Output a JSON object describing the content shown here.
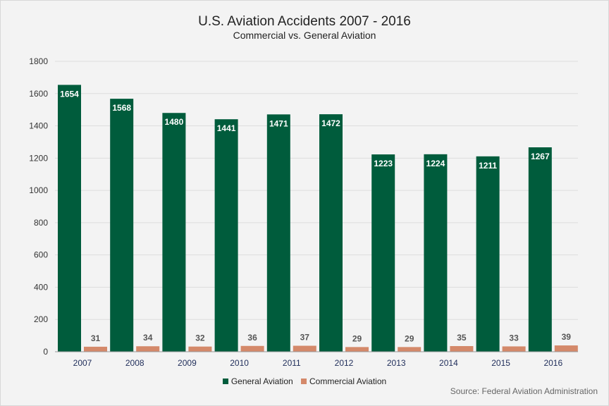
{
  "chart_data": {
    "type": "bar",
    "title": "U.S. Aviation Accidents 2007 - 2016",
    "subtitle": "Commercial vs. General Aviation",
    "categories": [
      "2007",
      "2008",
      "2009",
      "2010",
      "2011",
      "2012",
      "2013",
      "2014",
      "2015",
      "2016"
    ],
    "series": [
      {
        "name": "General Aviation",
        "color": "#005c3c",
        "values": [
          1654,
          1568,
          1480,
          1441,
          1471,
          1472,
          1223,
          1224,
          1211,
          1267
        ]
      },
      {
        "name": "Commercial Aviation",
        "color": "#d4896a",
        "values": [
          31,
          34,
          32,
          36,
          37,
          29,
          29,
          35,
          33,
          39
        ]
      }
    ],
    "ylim": [
      0,
      1800
    ],
    "yticks": [
      0,
      200,
      400,
      600,
      800,
      1000,
      1200,
      1400,
      1600,
      1800
    ],
    "grid": true,
    "legend_position": "bottom",
    "source": "Source: Federal Aviation Administration"
  }
}
